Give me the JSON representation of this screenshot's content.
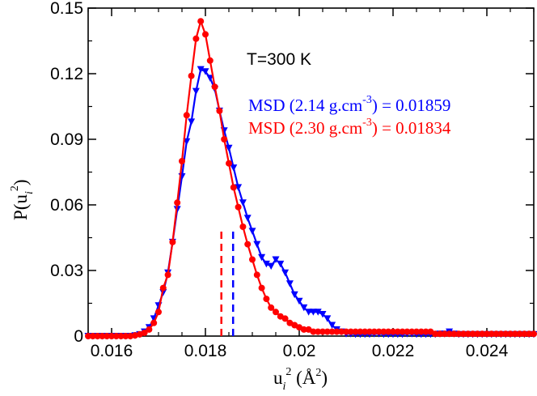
{
  "chart_data": {
    "type": "line",
    "title": "",
    "xlabel": "u_i^2 (Å^2)",
    "ylabel": "P(u_i^2)",
    "xlim": [
      0.0155,
      0.025
    ],
    "ylim": [
      0,
      0.15
    ],
    "x_ticks": [
      0.016,
      0.018,
      0.02,
      0.022,
      0.024
    ],
    "x_tick_labels": [
      "0.016",
      "0.018",
      "0.02",
      "0.022",
      "0.024"
    ],
    "y_ticks": [
      0,
      0.03,
      0.06,
      0.09,
      0.12,
      0.15
    ],
    "y_tick_labels": [
      "0",
      "0.03",
      "0.06",
      "0.09",
      "0.12",
      "0.15"
    ],
    "annotation": "T=300 K",
    "series": [
      {
        "name": "MSD (2.14 g.cm-3) = 0.01859",
        "legend_prefix": "MSD (2.14 g.cm",
        "legend_sup": "-3",
        "legend_suffix": ") = 0.01859",
        "color": "#0000ff",
        "marker": "triangle-down",
        "msd": 0.01859,
        "x": [
          0.0155,
          0.0156,
          0.0157,
          0.0158,
          0.0159,
          0.016,
          0.0161,
          0.0162,
          0.0163,
          0.0164,
          0.0165,
          0.0166,
          0.0167,
          0.0168,
          0.0169,
          0.017,
          0.0171,
          0.0172,
          0.0173,
          0.0174,
          0.0175,
          0.0176,
          0.0177,
          0.0178,
          0.0179,
          0.018,
          0.0181,
          0.0182,
          0.0183,
          0.0184,
          0.0185,
          0.0186,
          0.0187,
          0.0188,
          0.0189,
          0.019,
          0.0191,
          0.0192,
          0.0193,
          0.0194,
          0.0195,
          0.0196,
          0.0197,
          0.0198,
          0.0199,
          0.02,
          0.0201,
          0.0202,
          0.0203,
          0.0204,
          0.0205,
          0.0206,
          0.0207,
          0.0208,
          0.0209,
          0.021,
          0.0211,
          0.0212,
          0.0213,
          0.0214,
          0.0215,
          0.0216,
          0.0217,
          0.0218,
          0.0219,
          0.022,
          0.0221,
          0.0222,
          0.0223,
          0.0224,
          0.0225,
          0.0226,
          0.0227,
          0.0228,
          0.0229,
          0.023,
          0.0231,
          0.0232,
          0.0233,
          0.0234,
          0.0235,
          0.0236,
          0.0237,
          0.0238,
          0.0239,
          0.024,
          0.0241,
          0.0242,
          0.0243,
          0.0244,
          0.0245,
          0.0246,
          0.0247,
          0.0248,
          0.0249,
          0.025
        ],
        "y": [
          0,
          0,
          0,
          0,
          0,
          0,
          0,
          0,
          0,
          0,
          0.0003,
          0.0008,
          0.002,
          0.004,
          0.008,
          0.014,
          0.02,
          0.029,
          0.043,
          0.058,
          0.073,
          0.089,
          0.098,
          0.112,
          0.122,
          0.121,
          0.118,
          0.113,
          0.103,
          0.094,
          0.086,
          0.077,
          0.068,
          0.061,
          0.054,
          0.048,
          0.042,
          0.036,
          0.033,
          0.032,
          0.035,
          0.033,
          0.029,
          0.024,
          0.019,
          0.016,
          0.013,
          0.011,
          0.011,
          0.011,
          0.01,
          0.008,
          0.005,
          0.003,
          0.002,
          0.001,
          0.001,
          0.0008,
          0.0008,
          0.0008,
          0.0008,
          0.001,
          0.001,
          0.0008,
          0.0008,
          0.0008,
          0.0008,
          0.0008,
          0.001,
          0.001,
          0.0008,
          0.0008,
          0.0008,
          0.0008,
          0.0008,
          0.001,
          0.001,
          0.002,
          0.001,
          0.0008,
          0.0008,
          0.0008,
          0.0008,
          0.0008,
          0.0008,
          0.0008,
          0.0008,
          0.0008,
          0.0008,
          0.0008,
          0.0008,
          0.0008,
          0.0008,
          0.0008,
          0.0008,
          0.0008
        ]
      },
      {
        "name": "MSD (2.30 g.cm-3) = 0.01834",
        "legend_prefix": "MSD (2.30 g.cm",
        "legend_sup": "-3",
        "legend_suffix": ") = 0.01834",
        "color": "#ff0000",
        "marker": "circle",
        "msd": 0.01834,
        "x": [
          0.0155,
          0.0156,
          0.0157,
          0.0158,
          0.0159,
          0.016,
          0.0161,
          0.0162,
          0.0163,
          0.0164,
          0.0165,
          0.0166,
          0.0167,
          0.0168,
          0.0169,
          0.017,
          0.0171,
          0.0172,
          0.0173,
          0.0174,
          0.0175,
          0.0176,
          0.0177,
          0.0178,
          0.0179,
          0.018,
          0.0181,
          0.0182,
          0.0183,
          0.0184,
          0.0185,
          0.0186,
          0.0187,
          0.0188,
          0.0189,
          0.019,
          0.0191,
          0.0192,
          0.0193,
          0.0194,
          0.0195,
          0.0196,
          0.0197,
          0.0198,
          0.0199,
          0.02,
          0.0201,
          0.0202,
          0.0203,
          0.0204,
          0.0205,
          0.0206,
          0.0207,
          0.0208,
          0.0209,
          0.021,
          0.0211,
          0.0212,
          0.0213,
          0.0214,
          0.0215,
          0.0216,
          0.0217,
          0.0218,
          0.0219,
          0.022,
          0.0221,
          0.0222,
          0.0223,
          0.0224,
          0.0225,
          0.0226,
          0.0227,
          0.0228,
          0.0229,
          0.023,
          0.0231,
          0.0232,
          0.0233,
          0.0234,
          0.0235,
          0.0236,
          0.0237,
          0.0238,
          0.0239,
          0.024,
          0.0241,
          0.0242,
          0.0243,
          0.0244,
          0.0245,
          0.0246,
          0.0247,
          0.0248,
          0.0249,
          0.025
        ],
        "y": [
          0,
          0,
          0,
          0,
          0,
          0,
          0,
          0,
          0,
          0,
          0.0003,
          0.0008,
          0.0015,
          0.003,
          0.006,
          0.011,
          0.022,
          0.028,
          0.043,
          0.061,
          0.08,
          0.101,
          0.119,
          0.136,
          0.144,
          0.138,
          0.126,
          0.114,
          0.103,
          0.09,
          0.079,
          0.068,
          0.059,
          0.05,
          0.042,
          0.035,
          0.028,
          0.022,
          0.017,
          0.013,
          0.011,
          0.009,
          0.008,
          0.006,
          0.005,
          0.004,
          0.003,
          0.003,
          0.002,
          0.002,
          0.002,
          0.002,
          0.002,
          0.002,
          0.002,
          0.002,
          0.002,
          0.002,
          0.002,
          0.002,
          0.002,
          0.002,
          0.002,
          0.002,
          0.002,
          0.002,
          0.002,
          0.002,
          0.002,
          0.002,
          0.002,
          0.002,
          0.002,
          0.002,
          0.001,
          0.001,
          0.001,
          0.001,
          0.001,
          0.001,
          0.001,
          0.001,
          0.001,
          0.001,
          0.001,
          0.001,
          0.001,
          0.001,
          0.001,
          0.001,
          0.001,
          0.001,
          0.001,
          0.001,
          0.001,
          0.001
        ]
      }
    ]
  }
}
